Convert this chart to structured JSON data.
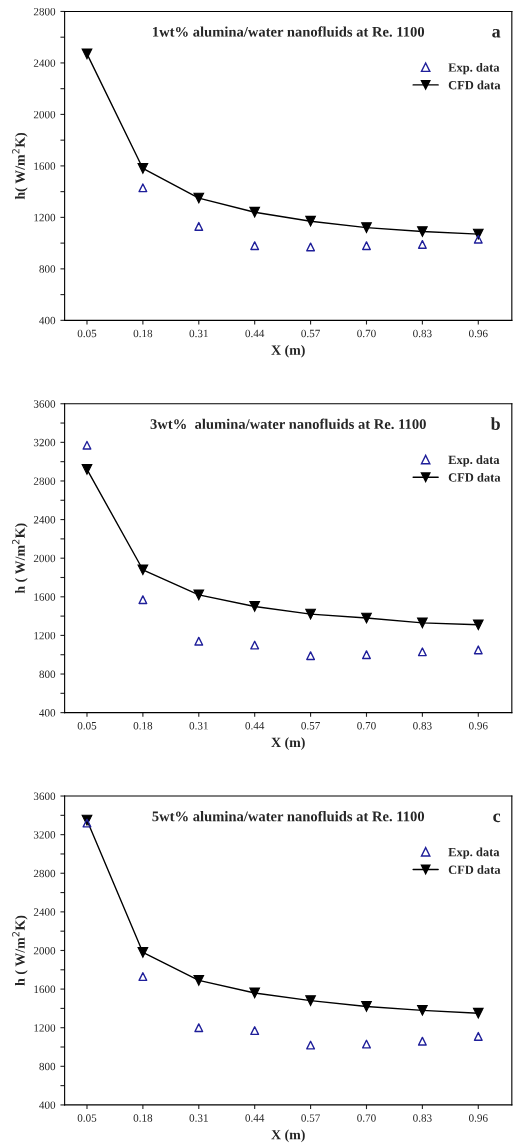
{
  "chart_data": [
    {
      "type": "line",
      "title": "1wt% alumina/water nanofluids at Re. 1100",
      "xlabel": "X (m)",
      "ylabel": "h( W/m$^{2}$K)",
      "annotations": [
        "a"
      ],
      "categories": [
        "0.05",
        "0.18",
        "0.31",
        "0.44",
        "0.57",
        "0.70",
        "0.83",
        "0.96"
      ],
      "series": [
        {
          "name": "Exp. data",
          "type": "scatter",
          "marker": "triangle",
          "color": "#1f1f9a",
          "values": [
            null,
            1430,
            1130,
            980,
            970,
            980,
            990,
            1030
          ]
        },
        {
          "name": "CFD data",
          "marker": "triangle",
          "color": "#000000",
          "values": [
            2470,
            1580,
            1350,
            1240,
            1170,
            1120,
            1090,
            1070
          ]
        }
      ],
      "ylim": [
        400,
        2800
      ],
      "yticks": [
        400,
        {
          "value": 600,
          "label": null
        },
        800,
        {
          "value": 1000,
          "label": null
        },
        1200,
        {
          "value": 1400,
          "label": null
        },
        1600,
        {
          "value": 1800,
          "label": null
        },
        2000,
        {
          "value": 2200,
          "label": null
        },
        2400,
        {
          "value": 2600,
          "label": null
        },
        2800
      ],
      "legend": "top right",
      "grid": false
    },
    {
      "type": "line",
      "title": "3wt%  alumina/water nanofluids at Re. 1100",
      "xlabel": "X (m)",
      "ylabel": "h ( W/m$^{2}$K)",
      "annotations": [
        "b"
      ],
      "categories": [
        "0.05",
        "0.18",
        "0.31",
        "0.44",
        "0.57",
        "0.70",
        "0.83",
        "0.96"
      ],
      "series": [
        {
          "name": "Exp. data",
          "type": "scatter",
          "marker": "triangle",
          "color": "#1f1f9a",
          "values": [
            3170,
            1570,
            1140,
            1100,
            990,
            1000,
            1030,
            1050
          ]
        },
        {
          "name": "CFD data",
          "marker": "triangle",
          "color": "#000000",
          "values": [
            2920,
            1880,
            1620,
            1500,
            1420,
            1380,
            1330,
            1310
          ]
        }
      ],
      "ylim": [
        400,
        3600
      ],
      "yticks": [
        400,
        {
          "value": 600,
          "label": null
        },
        800,
        {
          "value": 1000,
          "label": null
        },
        1200,
        {
          "value": 1400,
          "label": null
        },
        1600,
        {
          "value": 1800,
          "label": null
        },
        2000,
        {
          "value": 2200,
          "label": null
        },
        2400,
        {
          "value": 2600,
          "label": null
        },
        2800,
        {
          "value": 3000,
          "label": null
        },
        3200,
        {
          "value": 3400,
          "label": null
        },
        3600
      ],
      "legend": "top right",
      "grid": false
    },
    {
      "type": "line",
      "title": "5wt% alumina/water nanofluids at Re. 1100",
      "xlabel": "X (m)",
      "ylabel": "h ( W/m$^{2}$K)",
      "annotations": [
        "c"
      ],
      "categories": [
        "0.05",
        "0.18",
        "0.31",
        "0.44",
        "0.57",
        "0.70",
        "0.83",
        "0.96"
      ],
      "series": [
        {
          "name": "Exp. data",
          "type": "scatter",
          "marker": "triangle",
          "color": "#1f1f9a",
          "values": [
            3320,
            1730,
            1200,
            1170,
            1020,
            1030,
            1060,
            1110
          ]
        },
        {
          "name": "CFD data",
          "marker": "triangle",
          "color": "#000000",
          "values": [
            3350,
            1980,
            1690,
            1560,
            1480,
            1420,
            1380,
            1350
          ]
        }
      ],
      "ylim": [
        400,
        3600
      ],
      "yticks": [
        400,
        {
          "value": 600,
          "label": null
        },
        800,
        {
          "value": 1000,
          "label": null
        },
        1200,
        {
          "value": 1400,
          "label": null
        },
        1600,
        {
          "value": 1800,
          "label": null
        },
        2000,
        {
          "value": 2200,
          "label": null
        },
        2400,
        {
          "value": 2600,
          "label": null
        },
        2800,
        {
          "value": 3000,
          "label": null
        },
        3200,
        {
          "value": 3400,
          "label": null
        },
        3600
      ],
      "legend": "top right",
      "grid": false
    }
  ]
}
